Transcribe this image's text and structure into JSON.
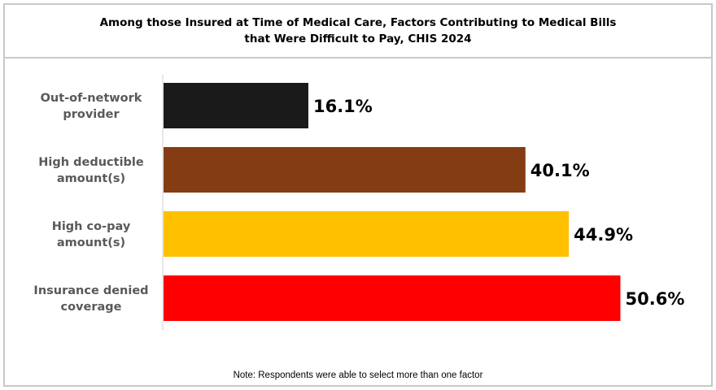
{
  "chart_data": {
    "type": "bar",
    "orientation": "horizontal",
    "title_lines": [
      "Among those Insured at Time of Medical Care, Factors Contributing to Medical Bills",
      "that Were Difficult to Pay, CHIS 2024"
    ],
    "categories": [
      [
        "Out-of-network",
        "provider"
      ],
      [
        "High deductible",
        "amount(s)"
      ],
      [
        "High co-pay",
        "amount(s)"
      ],
      [
        "Insurance denied",
        "coverage"
      ]
    ],
    "values": [
      16.1,
      40.1,
      44.9,
      50.6
    ],
    "value_labels": [
      "16.1%",
      "40.1%",
      "44.9%",
      "50.6%"
    ],
    "colors": [
      "#1a1a1a",
      "#843c12",
      "#ffc000",
      "#ff0000"
    ],
    "xlim": [
      0,
      60
    ],
    "grid": false,
    "legend": "none",
    "note": "Note: Respondents were able to select more than one factor"
  }
}
